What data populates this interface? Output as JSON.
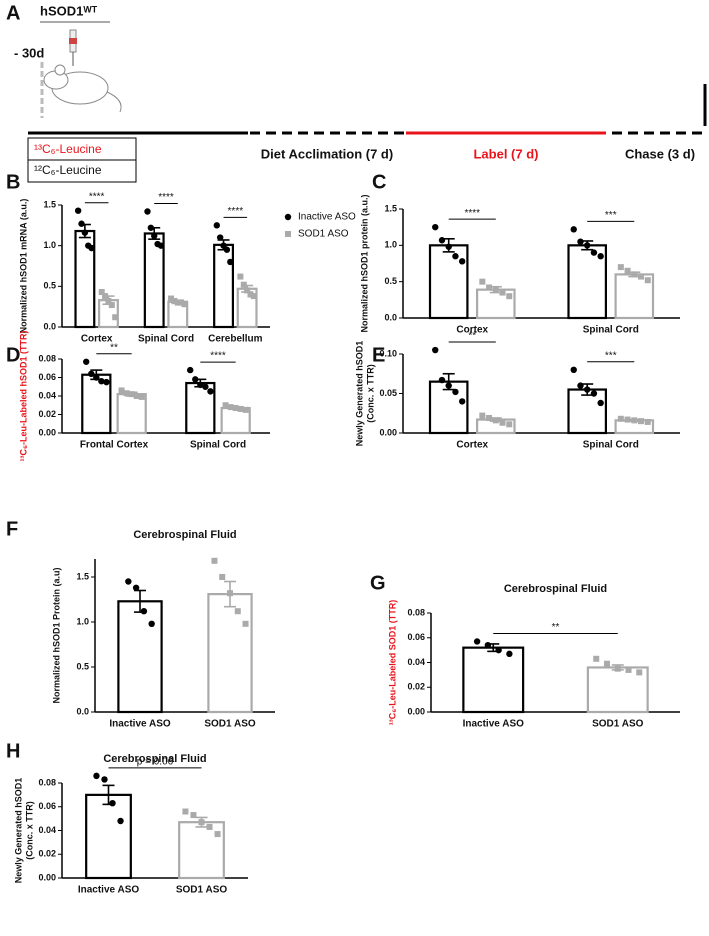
{
  "panels": [
    "A",
    "B",
    "C",
    "D",
    "E",
    "F",
    "G",
    "H"
  ],
  "timeline": {
    "header": "hSOD1ᵂᵀ",
    "time_point": "- 30d",
    "legend": [
      "¹³C₆-Leucine",
      "¹²C₆-Leucine"
    ],
    "phases": [
      "Diet Acclimation (7 d)",
      "Label (7 d)",
      "Chase (3 d)"
    ]
  },
  "chart_data": [
    {
      "type": "bar",
      "ylabel": [
        "Normalized hSOD1 mRNA (a.u.)"
      ],
      "categories": [
        "Cortex",
        "Spinal Cord",
        "Cerebellum"
      ],
      "ylim": [
        0,
        1.5
      ],
      "yticks": [
        {
          "value": 0,
          "label": "0.0"
        },
        0.5,
        {
          "value": 1,
          "label": "1.0"
        },
        1.5
      ],
      "legend": "right",
      "series": [
        {
          "name": "Inactive ASO",
          "color": "#000000",
          "marker": "circle",
          "values": [
            1.18,
            1.15,
            1.01
          ],
          "errors": [
            0.08,
            0.07,
            0.06
          ],
          "points": [
            [
              1.43,
              1.27,
              1.16,
              1.0,
              0.97
            ],
            [
              1.42,
              1.22,
              1.12,
              1.02,
              1.0
            ],
            [
              1.25,
              1.1,
              1.0,
              0.95,
              0.8
            ]
          ]
        },
        {
          "name": "SOD1 ASO",
          "color": "#aaaaaa",
          "marker": "square",
          "values": [
            0.33,
            0.31,
            0.47
          ],
          "errors": [
            0.05,
            0.02,
            0.04
          ],
          "points": [
            [
              0.43,
              0.38,
              0.32,
              0.27,
              0.12
            ],
            [
              0.35,
              0.32,
              0.3,
              0.3,
              0.28
            ],
            [
              0.62,
              0.52,
              0.45,
              0.4,
              0.38
            ]
          ]
        }
      ],
      "significance": [
        "****",
        "****",
        "****"
      ]
    },
    {
      "type": "bar",
      "ylabel": [
        "Normalized hSOD1 protein (a.u.)"
      ],
      "categories": [
        "Cortex",
        "Spinal Cord"
      ],
      "ylim": [
        0,
        1.5
      ],
      "yticks": [
        {
          "value": 0,
          "label": "0.0"
        },
        0.5,
        {
          "value": 1,
          "label": "1.0"
        },
        1.5
      ],
      "series": [
        {
          "color": "#000000",
          "marker": "circle",
          "values": [
            1.0,
            1.0
          ],
          "errors": [
            0.09,
            0.06
          ],
          "points": [
            [
              1.25,
              1.07,
              0.98,
              0.85,
              0.78
            ],
            [
              1.22,
              1.05,
              1.0,
              0.9,
              0.85
            ]
          ]
        },
        {
          "color": "#aaaaaa",
          "marker": "square",
          "values": [
            0.39,
            0.6
          ],
          "errors": [
            0.04,
            0.03
          ],
          "points": [
            [
              0.5,
              0.42,
              0.39,
              0.35,
              0.3
            ],
            [
              0.7,
              0.65,
              0.6,
              0.57,
              0.52
            ]
          ]
        }
      ],
      "significance": [
        "****",
        "***"
      ]
    },
    {
      "type": "bar",
      "ylabel": [
        "¹³C₆-Leu-Labeled hSOD1 (TTR)"
      ],
      "ylabel_color": "#e8141b",
      "categories": [
        "Frontal Cortex",
        "Spinal Cord"
      ],
      "ylim": [
        0,
        0.08
      ],
      "yticks": [
        {
          "value": 0,
          "label": "0.00"
        },
        0.02,
        0.04,
        0.06,
        0.08
      ],
      "series": [
        {
          "color": "#000000",
          "marker": "circle",
          "values": [
            0.063,
            0.054
          ],
          "errors": [
            0.005,
            0.004
          ],
          "points": [
            [
              0.077,
              0.064,
              0.06,
              0.056,
              0.055
            ],
            [
              0.068,
              0.058,
              0.052,
              0.05,
              0.045
            ]
          ]
        },
        {
          "color": "#aaaaaa",
          "marker": "square",
          "values": [
            0.042,
            0.027
          ],
          "errors": [
            0.002,
            0.001
          ],
          "points": [
            [
              0.046,
              0.043,
              0.042,
              0.04,
              0.039
            ],
            [
              0.03,
              0.028,
              0.027,
              0.026,
              0.025
            ]
          ]
        }
      ],
      "significance": [
        "**",
        "****"
      ]
    },
    {
      "type": "bar",
      "ylabel": [
        "Newly Generated hSOD1",
        "(Conc. x TTR)"
      ],
      "categories": [
        "Cortex",
        "Spinal Cord"
      ],
      "ylim": [
        0,
        0.1
      ],
      "yticks": [
        {
          "value": 0,
          "label": "0.00"
        },
        0.05,
        {
          "value": 0.1,
          "label": "0.10"
        }
      ],
      "series": [
        {
          "color": "#000000",
          "marker": "circle",
          "values": [
            0.065,
            0.055
          ],
          "errors": [
            0.01,
            0.007
          ],
          "points": [
            [
              0.105,
              0.067,
              0.06,
              0.052,
              0.04
            ],
            [
              0.08,
              0.06,
              0.055,
              0.05,
              0.038
            ]
          ]
        },
        {
          "color": "#aaaaaa",
          "marker": "square",
          "values": [
            0.017,
            0.016
          ],
          "errors": [
            0.002,
            0.001
          ],
          "points": [
            [
              0.022,
              0.019,
              0.016,
              0.013,
              0.011
            ],
            [
              0.018,
              0.017,
              0.016,
              0.015,
              0.014
            ]
          ]
        }
      ],
      "significance": [
        "**",
        "***"
      ]
    },
    {
      "type": "bar",
      "title": "Cerebrospinal Fluid",
      "ylabel": [
        "Normalized hSOD1 Protein (a.u)"
      ],
      "categories": [
        "Inactive ASO",
        "SOD1 ASO"
      ],
      "ylim": [
        0,
        1.7
      ],
      "yticks": [
        {
          "value": 0,
          "label": "0.0"
        },
        0.5,
        {
          "value": 1,
          "label": "1.0"
        },
        1.5
      ],
      "colors": [
        "#000000",
        "#aaaaaa"
      ],
      "markers": [
        "circle",
        "square"
      ],
      "values": [
        1.23,
        1.31
      ],
      "errors": [
        0.12,
        0.14
      ],
      "points": [
        [
          1.45,
          1.38,
          1.12,
          0.98
        ],
        [
          1.68,
          1.5,
          1.32,
          1.12,
          0.98
        ]
      ]
    },
    {
      "type": "bar",
      "title": "Cerebrospinal Fluid",
      "ylabel": [
        "¹³C₆-Leu-Labeled SOD1 (TTR)"
      ],
      "ylabel_color": "#e8141b",
      "categories": [
        "Inactive ASO",
        "SOD1 ASO"
      ],
      "ylim": [
        0,
        0.08
      ],
      "yticks": [
        {
          "value": 0,
          "label": "0.00"
        },
        0.02,
        0.04,
        0.06,
        0.08
      ],
      "colors": [
        "#000000",
        "#aaaaaa"
      ],
      "markers": [
        "circle",
        "square"
      ],
      "values": [
        0.052,
        0.036
      ],
      "errors": [
        0.003,
        0.002
      ],
      "points": [
        [
          0.057,
          0.054,
          0.05,
          0.047
        ],
        [
          0.043,
          0.039,
          0.035,
          0.034,
          0.032
        ]
      ],
      "significance": "**"
    },
    {
      "type": "bar",
      "title": "Cerebrospinal Fluid",
      "ylabel": [
        "Newly Generated hSOD1",
        "(Conc. x TTR)"
      ],
      "categories": [
        "Inactive ASO",
        "SOD1 ASO"
      ],
      "ylim": [
        0,
        0.08
      ],
      "yticks": [
        {
          "value": 0,
          "label": "0.00"
        },
        0.02,
        0.04,
        0.06,
        0.08
      ],
      "colors": [
        "#000000",
        "#aaaaaa"
      ],
      "markers": [
        "circle",
        "square"
      ],
      "values": [
        0.07,
        0.047
      ],
      "errors": [
        0.008,
        0.004
      ],
      "points": [
        [
          0.086,
          0.083,
          0.063,
          0.048
        ],
        [
          0.056,
          0.053,
          0.047,
          0.043,
          0.037
        ]
      ],
      "significance": "p = 0.06"
    }
  ]
}
